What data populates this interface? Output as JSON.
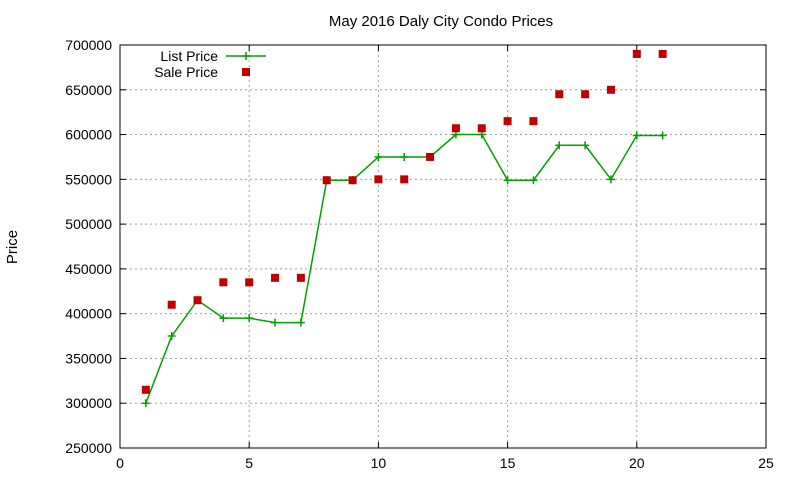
{
  "chart_data": {
    "type": "line",
    "title": "May 2016 Daly City Condo Prices",
    "xlabel": "",
    "ylabel": "Price",
    "xlim": [
      0,
      25
    ],
    "ylim": [
      250000,
      700000
    ],
    "x_ticks": [
      0,
      5,
      10,
      15,
      20,
      25
    ],
    "y_ticks": [
      250000,
      300000,
      350000,
      400000,
      450000,
      500000,
      550000,
      600000,
      650000,
      700000
    ],
    "x_tick_labels": [
      "0",
      "5",
      "10",
      "15",
      "20",
      "25"
    ],
    "y_tick_labels": [
      "250000",
      "300000",
      "350000",
      "400000",
      "450000",
      "500000",
      "550000",
      "600000",
      "650000",
      "700000"
    ],
    "grid": true,
    "legend_position": "top-left",
    "series": [
      {
        "name": "List Price",
        "style": "linespoints",
        "marker": "plus",
        "color": "#00a000",
        "x": [
          1,
          2,
          3,
          4,
          5,
          6,
          7,
          8,
          9,
          10,
          11,
          12,
          13,
          14,
          15,
          16,
          17,
          18,
          19,
          20,
          21
        ],
        "values": [
          300000,
          375000,
          415000,
          395000,
          395000,
          390000,
          390000,
          549000,
          549000,
          575000,
          575000,
          575000,
          600000,
          600000,
          549000,
          549000,
          588000,
          588000,
          550000,
          599000,
          599000
        ]
      },
      {
        "name": "Sale Price",
        "style": "points",
        "marker": "square",
        "color": "#c00000",
        "x": [
          1,
          2,
          3,
          4,
          5,
          6,
          7,
          8,
          9,
          10,
          11,
          12,
          13,
          14,
          15,
          16,
          17,
          18,
          19,
          20,
          21
        ],
        "values": [
          315000,
          410000,
          415000,
          435000,
          435000,
          440000,
          440000,
          549000,
          549000,
          550000,
          550000,
          575000,
          607000,
          607000,
          615000,
          615000,
          645000,
          645000,
          650000,
          690000,
          690000
        ]
      }
    ]
  }
}
